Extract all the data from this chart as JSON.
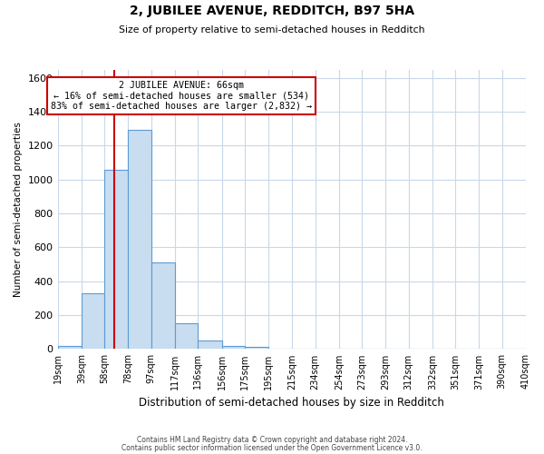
{
  "title": "2, JUBILEE AVENUE, REDDITCH, B97 5HA",
  "subtitle": "Size of property relative to semi-detached houses in Redditch",
  "xlabel": "Distribution of semi-detached houses by size in Redditch",
  "ylabel": "Number of semi-detached properties",
  "footnote1": "Contains HM Land Registry data © Crown copyright and database right 2024.",
  "footnote2": "Contains public sector information licensed under the Open Government Licence v3.0.",
  "bar_edges": [
    19,
    39,
    58,
    78,
    97,
    117,
    136,
    156,
    175,
    195,
    215,
    234,
    254,
    273,
    293,
    312,
    332,
    351,
    371,
    390,
    410
  ],
  "bar_heights": [
    20,
    330,
    1060,
    1295,
    510,
    150,
    50,
    20,
    15,
    0,
    0,
    0,
    0,
    0,
    0,
    0,
    0,
    0,
    0,
    0
  ],
  "tick_labels": [
    "19sqm",
    "39sqm",
    "58sqm",
    "78sqm",
    "97sqm",
    "117sqm",
    "136sqm",
    "156sqm",
    "175sqm",
    "195sqm",
    "215sqm",
    "234sqm",
    "254sqm",
    "273sqm",
    "293sqm",
    "312sqm",
    "332sqm",
    "351sqm",
    "371sqm",
    "390sqm",
    "410sqm"
  ],
  "red_line_x": 66,
  "annotation_title": "2 JUBILEE AVENUE: 66sqm",
  "annotation_line2": "← 16% of semi-detached houses are smaller (534)",
  "annotation_line3": "83% of semi-detached houses are larger (2,832) →",
  "bar_color": "#c9ddf0",
  "bar_edge_color": "#5b9bd5",
  "red_line_color": "#cc0000",
  "annotation_box_edge": "#cc0000",
  "background_color": "#ffffff",
  "grid_color": "#c8d8ea",
  "ylim": [
    0,
    1650
  ],
  "yticks": [
    0,
    200,
    400,
    600,
    800,
    1000,
    1200,
    1400,
    1600
  ]
}
